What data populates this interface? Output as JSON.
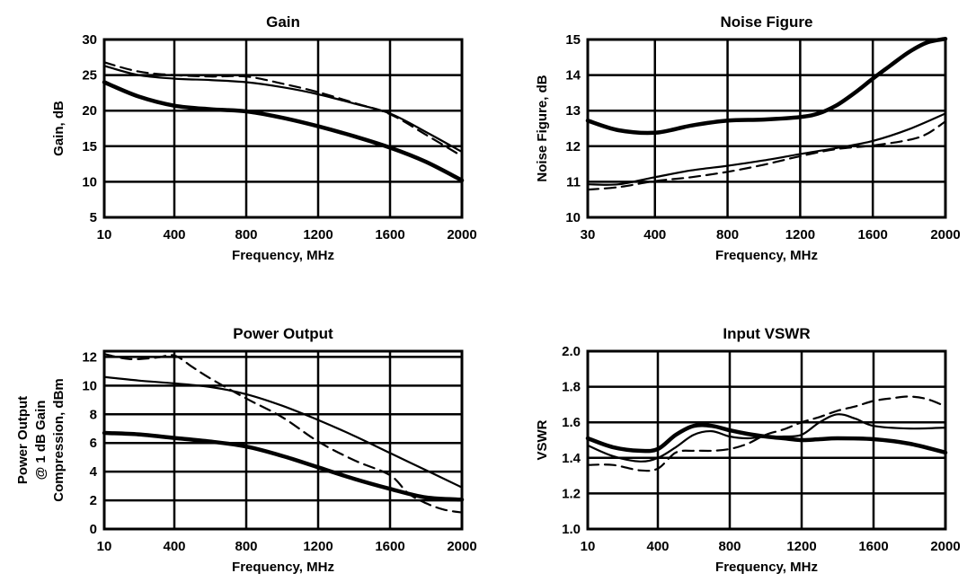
{
  "chart_data": [
    {
      "type": "line",
      "title": "Gain",
      "xlabel": "Frequency, MHz",
      "ylabel_lines": [
        "Gain, dB"
      ],
      "xticks": [
        10,
        400,
        800,
        1200,
        1600,
        2000
      ],
      "xtick_labels": [
        "10",
        "400",
        "800",
        "1200",
        "1600",
        "2000"
      ],
      "yticks": [
        5,
        10,
        15,
        20,
        25,
        30
      ],
      "ytick_labels": [
        "5",
        "10",
        "15",
        "20",
        "25",
        "30"
      ],
      "xlim": [
        10,
        2000
      ],
      "ylim": [
        5,
        30
      ],
      "grid": true,
      "series": [
        {
          "style": "thick",
          "x": [
            10,
            200,
            400,
            600,
            800,
            1000,
            1200,
            1400,
            1600,
            1800,
            2000
          ],
          "y": [
            24,
            22,
            20.7,
            20.2,
            19.9,
            19,
            17.8,
            16.4,
            14.8,
            12.8,
            10.2
          ]
        },
        {
          "style": "thin",
          "x": [
            10,
            200,
            400,
            600,
            800,
            1000,
            1200,
            1400,
            1600,
            1800,
            2000
          ],
          "y": [
            26.3,
            25,
            24.5,
            24.3,
            24,
            23.3,
            22.3,
            21,
            19.6,
            17,
            14.2
          ]
        },
        {
          "style": "dashed",
          "x": [
            10,
            200,
            400,
            600,
            800,
            1000,
            1200,
            1400,
            1600,
            1800,
            2000
          ],
          "y": [
            26.8,
            25.5,
            25,
            24.8,
            24.8,
            23.8,
            22.6,
            21.1,
            19.5,
            16.6,
            13.6
          ]
        }
      ]
    },
    {
      "type": "line",
      "title": "Noise Figure",
      "xlabel": "Frequency, MHz",
      "ylabel_lines": [
        "Noise Figure, dB"
      ],
      "xticks": [
        30,
        400,
        800,
        1200,
        1600,
        2000
      ],
      "xtick_labels": [
        "30",
        "400",
        "800",
        "1200",
        "1600",
        "2000"
      ],
      "yticks": [
        10,
        11,
        12,
        13,
        14,
        15
      ],
      "ytick_labels": [
        "10",
        "11",
        "12",
        "13",
        "14",
        "15"
      ],
      "xlim": [
        30,
        2000
      ],
      "ylim": [
        10,
        15
      ],
      "grid": true,
      "series": [
        {
          "style": "thick",
          "x": [
            30,
            200,
            400,
            600,
            800,
            1000,
            1200,
            1300,
            1400,
            1500,
            1600,
            1700,
            1800,
            1900,
            2000
          ],
          "y": [
            12.72,
            12.45,
            12.38,
            12.58,
            12.72,
            12.75,
            12.82,
            12.92,
            13.15,
            13.5,
            13.9,
            14.28,
            14.65,
            14.92,
            15.02
          ]
        },
        {
          "style": "thin",
          "x": [
            30,
            200,
            400,
            600,
            800,
            1000,
            1200,
            1400,
            1600,
            1800,
            2000
          ],
          "y": [
            10.93,
            10.93,
            11.13,
            11.32,
            11.45,
            11.6,
            11.78,
            11.95,
            12.15,
            12.48,
            12.92
          ]
        },
        {
          "style": "dashed",
          "x": [
            30,
            200,
            400,
            600,
            800,
            1000,
            1200,
            1400,
            1600,
            1800,
            1900,
            2000
          ],
          "y": [
            10.78,
            10.85,
            11.02,
            11.13,
            11.28,
            11.48,
            11.72,
            11.92,
            12.02,
            12.18,
            12.35,
            12.7
          ]
        }
      ]
    },
    {
      "type": "line",
      "title": "Power Output",
      "xlabel": "Frequency, MHz",
      "ylabel_lines": [
        "Power Output",
        "@ 1 dB Gain",
        "Compression, dBm"
      ],
      "xticks": [
        10,
        400,
        800,
        1200,
        1600,
        2000
      ],
      "xtick_labels": [
        "10",
        "400",
        "800",
        "1200",
        "1600",
        "2000"
      ],
      "yticks": [
        0,
        2,
        4,
        6,
        8,
        10,
        12
      ],
      "ytick_labels": [
        "0",
        "2",
        "4",
        "6",
        "8",
        "10",
        "12"
      ],
      "xlim": [
        10,
        2000
      ],
      "ylim": [
        0,
        12.4
      ],
      "grid": true,
      "series": [
        {
          "style": "thick",
          "x": [
            10,
            200,
            400,
            600,
            800,
            1000,
            1200,
            1400,
            1600,
            1800,
            2000
          ],
          "y": [
            6.7,
            6.6,
            6.35,
            6.1,
            5.75,
            5.1,
            4.3,
            3.5,
            2.8,
            2.2,
            2.05
          ]
        },
        {
          "style": "thin",
          "x": [
            10,
            200,
            400,
            600,
            800,
            1000,
            1200,
            1400,
            1600,
            1800,
            2000
          ],
          "y": [
            10.6,
            10.35,
            10.15,
            9.9,
            9.4,
            8.6,
            7.6,
            6.5,
            5.3,
            4.1,
            2.9
          ]
        },
        {
          "style": "dashed",
          "x": [
            10,
            150,
            300,
            400,
            500,
            600,
            800,
            1000,
            1200,
            1400,
            1600,
            1700,
            1800,
            1900,
            2000
          ],
          "y": [
            12.2,
            11.85,
            11.95,
            12.1,
            11.3,
            10.5,
            9.1,
            7.8,
            6.1,
            4.8,
            3.75,
            2.5,
            1.8,
            1.35,
            1.15
          ]
        }
      ]
    },
    {
      "type": "line",
      "title": "Input VSWR",
      "xlabel": "Frequency, MHz",
      "ylabel_lines": [
        "VSWR"
      ],
      "xticks": [
        10,
        400,
        800,
        1200,
        1600,
        2000
      ],
      "xtick_labels": [
        "10",
        "400",
        "800",
        "1200",
        "1600",
        "2000"
      ],
      "yticks": [
        1.0,
        1.2,
        1.4,
        1.6,
        1.8,
        2.0
      ],
      "ytick_labels": [
        "1.0",
        "1.2",
        "1.4",
        "1.6",
        "1.8",
        "2.0"
      ],
      "xlim": [
        10,
        2000
      ],
      "ylim": [
        1.0,
        2.0
      ],
      "grid": true,
      "series": [
        {
          "style": "thick",
          "x": [
            10,
            150,
            300,
            400,
            500,
            600,
            700,
            800,
            900,
            1000,
            1100,
            1200,
            1300,
            1400,
            1600,
            1800,
            2000
          ],
          "y": [
            1.51,
            1.46,
            1.44,
            1.45,
            1.53,
            1.58,
            1.58,
            1.555,
            1.535,
            1.52,
            1.51,
            1.5,
            1.505,
            1.51,
            1.505,
            1.48,
            1.43
          ]
        },
        {
          "style": "thin",
          "x": [
            10,
            150,
            300,
            400,
            500,
            600,
            700,
            800,
            900,
            1000,
            1100,
            1200,
            1300,
            1400,
            1500,
            1600,
            1800,
            2000
          ],
          "y": [
            1.47,
            1.41,
            1.38,
            1.4,
            1.46,
            1.53,
            1.55,
            1.52,
            1.51,
            1.52,
            1.52,
            1.53,
            1.6,
            1.645,
            1.62,
            1.58,
            1.565,
            1.57
          ]
        },
        {
          "style": "dashed",
          "x": [
            10,
            150,
            300,
            400,
            500,
            600,
            700,
            800,
            900,
            1000,
            1100,
            1200,
            1300,
            1400,
            1500,
            1600,
            1700,
            1800,
            1900,
            2000
          ],
          "y": [
            1.36,
            1.36,
            1.33,
            1.34,
            1.43,
            1.44,
            1.44,
            1.45,
            1.48,
            1.53,
            1.56,
            1.6,
            1.63,
            1.665,
            1.69,
            1.72,
            1.735,
            1.745,
            1.73,
            1.69
          ]
        }
      ]
    }
  ]
}
